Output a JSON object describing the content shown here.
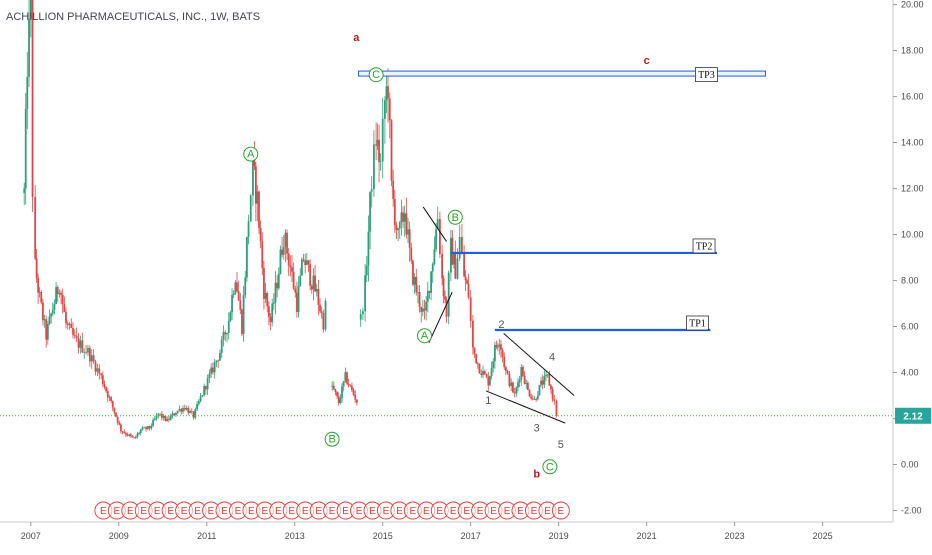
{
  "chart_data": {
    "type": "candlestick",
    "title": "ACHILLION PHARMACEUTICALS, INC., 1W, BATS",
    "x_ticks": [
      "2007",
      "2009",
      "2011",
      "2013",
      "2015",
      "2017",
      "2019",
      "2021",
      "2023",
      "2025"
    ],
    "y_ticks": [
      "20.00",
      "18.00",
      "16.00",
      "14.00",
      "12.00",
      "10.00",
      "8.00",
      "6.00",
      "4.00",
      "2.00",
      "0.00",
      "-2.00"
    ],
    "xlim": [
      2006.3,
      2026.6
    ],
    "ylim": [
      -2.5,
      20.2
    ],
    "grid": false,
    "colors": {
      "up": "#2e9e7a",
      "down": "#e04646",
      "current_line": "#4caf50",
      "tp_line": "#1e5fd6",
      "wave_green": "#2ca02c",
      "wave_red": "#b71c1c",
      "earnings": "#e53935"
    },
    "current_price": {
      "label": "2.12",
      "value": 2.12
    },
    "price_path": [
      [
        2006.85,
        11.8
      ],
      [
        2006.92,
        17.5
      ],
      [
        2007.0,
        19.9
      ],
      [
        2007.04,
        12.0
      ],
      [
        2007.1,
        8.6
      ],
      [
        2007.2,
        7.2
      ],
      [
        2007.35,
        5.6
      ],
      [
        2007.5,
        6.8
      ],
      [
        2007.65,
        7.9
      ],
      [
        2007.8,
        6.1
      ],
      [
        2008.0,
        5.4
      ],
      [
        2008.3,
        4.9
      ],
      [
        2008.6,
        3.8
      ],
      [
        2008.9,
        2.3
      ],
      [
        2009.05,
        1.5
      ],
      [
        2009.2,
        1.3
      ],
      [
        2009.35,
        1.1
      ],
      [
        2009.5,
        1.5
      ],
      [
        2009.7,
        1.6
      ],
      [
        2009.9,
        2.2
      ],
      [
        2010.1,
        1.9
      ],
      [
        2010.3,
        2.3
      ],
      [
        2010.5,
        2.5
      ],
      [
        2010.7,
        2.1
      ],
      [
        2010.9,
        3.1
      ],
      [
        2011.1,
        4.0
      ],
      [
        2011.3,
        4.9
      ],
      [
        2011.5,
        6.3
      ],
      [
        2011.65,
        8.3
      ],
      [
        2011.8,
        6.0
      ],
      [
        2011.95,
        10.8
      ],
      [
        2012.05,
        12.8
      ],
      [
        2012.15,
        11.5
      ],
      [
        2012.3,
        7.6
      ],
      [
        2012.45,
        6.2
      ],
      [
        2012.6,
        8.0
      ],
      [
        2012.75,
        10.0
      ],
      [
        2012.9,
        8.6
      ],
      [
        2013.05,
        7.0
      ],
      [
        2013.2,
        9.0
      ],
      [
        2013.35,
        8.2
      ],
      [
        2013.5,
        7.4
      ],
      [
        2013.65,
        6.2
      ],
      [
        2013.75,
        7.5
      ]
    ],
    "price_path_2": [
      [
        2013.85,
        3.4
      ],
      [
        2014.0,
        2.7
      ],
      [
        2014.15,
        3.8
      ],
      [
        2014.3,
        3.2
      ],
      [
        2014.45,
        2.6
      ]
    ],
    "price_path_3": [
      [
        2014.5,
        6.3
      ],
      [
        2014.6,
        7.8
      ],
      [
        2014.75,
        12.5
      ],
      [
        2014.85,
        14.2
      ],
      [
        2014.95,
        13.0
      ],
      [
        2015.05,
        15.8
      ],
      [
        2015.12,
        16.6
      ],
      [
        2015.2,
        12.0
      ],
      [
        2015.35,
        9.8
      ],
      [
        2015.5,
        11.1
      ],
      [
        2015.65,
        8.5
      ],
      [
        2015.8,
        7.3
      ],
      [
        2015.95,
        6.4
      ],
      [
        2016.1,
        8.4
      ],
      [
        2016.25,
        10.8
      ],
      [
        2016.35,
        8.1
      ],
      [
        2016.45,
        6.6
      ],
      [
        2016.55,
        9.4
      ],
      [
        2016.65,
        8.5
      ],
      [
        2016.75,
        9.8
      ],
      [
        2016.85,
        8.2
      ],
      [
        2016.95,
        7.4
      ],
      [
        2017.05,
        5.0
      ],
      [
        2017.2,
        4.2
      ],
      [
        2017.4,
        3.6
      ],
      [
        2017.55,
        5.0
      ],
      [
        2017.65,
        5.5
      ],
      [
        2017.8,
        4.0
      ],
      [
        2018.0,
        3.0
      ],
      [
        2018.15,
        4.2
      ],
      [
        2018.3,
        3.2
      ],
      [
        2018.45,
        2.8
      ],
      [
        2018.6,
        3.5
      ],
      [
        2018.75,
        3.8
      ],
      [
        2018.9,
        2.7
      ],
      [
        2019.0,
        1.6
      ]
    ],
    "trendlines": [
      {
        "from": [
          2015.92,
          11.2
        ],
        "to": [
          2016.45,
          9.7
        ]
      },
      {
        "from": [
          2016.05,
          5.3
        ],
        "to": [
          2016.58,
          7.5
        ]
      },
      {
        "from": [
          2017.75,
          5.7
        ],
        "to": [
          2019.35,
          3.0
        ]
      },
      {
        "from": [
          2017.35,
          3.2
        ],
        "to": [
          2019.15,
          1.8
        ]
      }
    ],
    "targets": [
      {
        "label": "TP3",
        "value": 17.0,
        "x_start": 2014.45,
        "x_end": 2023.7,
        "style": "band"
      },
      {
        "label": "TP2",
        "value": 9.2,
        "x_start": 2016.55,
        "x_end": 2022.6,
        "style": "line"
      },
      {
        "label": "TP1",
        "value": 5.85,
        "x_start": 2017.55,
        "x_end": 2022.45,
        "style": "line"
      }
    ],
    "wave_labels": [
      {
        "text": "a",
        "x": 2014.4,
        "y": 18.6,
        "color": "red",
        "bold": true
      },
      {
        "text": "c",
        "x": 2021.0,
        "y": 17.6,
        "color": "red",
        "bold": true
      },
      {
        "text": "b",
        "x": 2018.5,
        "y": -0.4,
        "color": "red",
        "bold": true
      },
      {
        "text": "A",
        "x": 2012.0,
        "y": 13.5,
        "color": "green",
        "circled": true
      },
      {
        "text": "C",
        "x": 2014.85,
        "y": 16.95,
        "color": "green",
        "circled": true
      },
      {
        "text": "B",
        "x": 2013.85,
        "y": 1.1,
        "color": "green",
        "circled": true
      },
      {
        "text": "B",
        "x": 2016.65,
        "y": 10.75,
        "color": "green",
        "circled": true
      },
      {
        "text": "A",
        "x": 2015.95,
        "y": 5.6,
        "color": "green",
        "circled": true
      },
      {
        "text": "C",
        "x": 2018.8,
        "y": -0.1,
        "color": "green",
        "circled": true
      },
      {
        "text": "1",
        "x": 2017.4,
        "y": 2.8,
        "color": "dark"
      },
      {
        "text": "2",
        "x": 2017.7,
        "y": 6.1,
        "color": "dark"
      },
      {
        "text": "3",
        "x": 2018.5,
        "y": 1.6,
        "color": "dark"
      },
      {
        "text": "4",
        "x": 2018.85,
        "y": 4.7,
        "color": "dark"
      },
      {
        "text": "5",
        "x": 2019.05,
        "y": 0.9,
        "color": "dark"
      }
    ],
    "earnings_markers": {
      "label": "E",
      "x_start": 2008.65,
      "x_end": 2019.05,
      "y": -2.0,
      "count": 35
    }
  }
}
